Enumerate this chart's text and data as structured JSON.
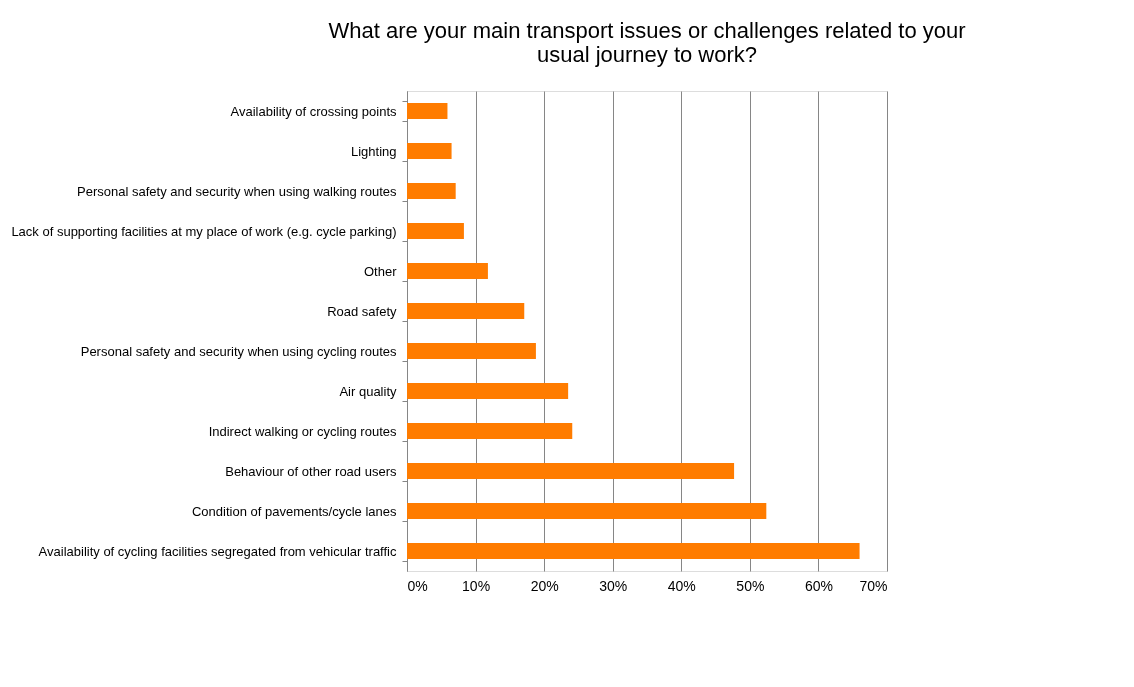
{
  "chart_data": {
    "type": "bar",
    "orientation": "horizontal",
    "title": "What are your main transport issues or challenges related to your usual journey to work?",
    "categories": [
      "Availability of crossing points",
      "Lighting",
      "Personal safety and security when using walking routes",
      "Lack of supporting facilities at my place of work (e.g. cycle parking)",
      "Other",
      "Road safety",
      "Personal safety and security when using cycling routes",
      "Air quality",
      "Indirect walking or cycling routes",
      "Behaviour of other road users",
      "Condition of pavements/cycle lanes",
      "Availability of cycling facilities segregated from vehicular traffic"
    ],
    "values": [
      5.9,
      6.5,
      7.1,
      8.3,
      11.8,
      17.1,
      18.8,
      23.5,
      24.1,
      47.7,
      52.4,
      66.0
    ],
    "color": "#ff7c00",
    "xlim": [
      0,
      70
    ],
    "xticks": [
      {
        "value": 0,
        "label": "0%"
      },
      {
        "value": 10,
        "label": "10%"
      },
      {
        "value": 20,
        "label": "20%"
      },
      {
        "value": 30,
        "label": "30%"
      },
      {
        "value": 40,
        "label": "40%"
      },
      {
        "value": 50,
        "label": "50%"
      },
      {
        "value": 60,
        "label": "60%"
      },
      {
        "value": 70,
        "label": "70%"
      }
    ],
    "grid": "x"
  }
}
